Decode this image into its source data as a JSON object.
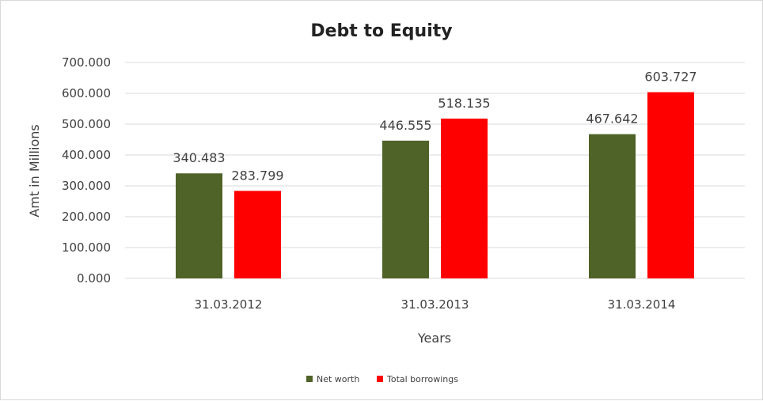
{
  "chart_data": {
    "type": "bar",
    "title": "Debt to Equity",
    "xlabel": "Years",
    "ylabel": "Amt in Millions",
    "categories": [
      "31.03.2012",
      "31.03.2013",
      "31.03.2014"
    ],
    "series": [
      {
        "name": "Net worth",
        "color": "#4f6228",
        "values": [
          340.483,
          446.555,
          467.642
        ]
      },
      {
        "name": "Total borrowings",
        "color": "#ff0000",
        "values": [
          283.799,
          518.135,
          603.727
        ]
      }
    ],
    "ylim": [
      0,
      700
    ],
    "yticks": [
      0,
      100,
      200,
      300,
      400,
      500,
      600,
      700
    ],
    "ytick_labels": [
      "0.000",
      "100.000",
      "200.000",
      "300.000",
      "400.000",
      "500.000",
      "600.000",
      "700.000"
    ],
    "data_labels": [
      [
        "340.483",
        "446.555",
        "467.642"
      ],
      [
        "283.799",
        "518.135",
        "603.727"
      ]
    ],
    "grid": true,
    "legend_position": "bottom"
  }
}
